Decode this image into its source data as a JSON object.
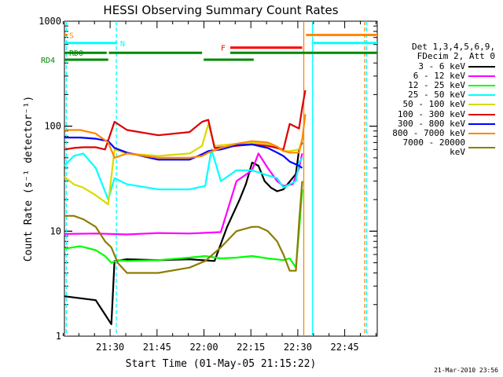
{
  "chart_data": {
    "type": "line",
    "title": "HESSI Observing Summary Count Rates",
    "xlabel": "Start Time (01-May-05 21:15:22)",
    "ylabel": "Count Rate (s⁻¹ detector⁻¹)",
    "yscale": "log",
    "ylim": [
      1,
      1000
    ],
    "xlim_minutes": [
      0,
      100
    ],
    "x_tick_labels": [
      "21:30",
      "21:45",
      "22:00",
      "22:15",
      "22:30",
      "22:45"
    ],
    "x_tick_minutes": [
      14.6,
      29.6,
      44.6,
      59.6,
      74.6,
      89.6
    ],
    "y_tick_labels": [
      "1",
      "10",
      "100",
      "1000"
    ],
    "y_tick_values": [
      1,
      10,
      100,
      1000
    ],
    "legend_header": [
      "Det 1,3,4,5,6,9,",
      "FDecim 2, Att 0"
    ],
    "series": [
      {
        "name": "3 - 6 keV",
        "color": "#000000",
        "x": [
          0,
          10,
          15,
          16,
          20,
          30,
          40,
          48,
          52,
          56,
          58,
          60,
          62,
          64,
          66,
          68,
          70,
          74,
          75,
          76
        ],
        "y": [
          2.4,
          2.2,
          1.3,
          5.2,
          5.4,
          5.3,
          5.4,
          5.2,
          11,
          20,
          28,
          45,
          42,
          30,
          26,
          24,
          25,
          35,
          60,
          70
        ]
      },
      {
        "name": "6 - 12 keV",
        "color": "#ff00ff",
        "x": [
          0,
          10,
          20,
          30,
          40,
          50,
          55,
          60,
          62,
          65,
          68,
          70,
          73,
          75,
          76
        ],
        "y": [
          9.4,
          9.5,
          9.3,
          9.6,
          9.5,
          9.8,
          30,
          38,
          55,
          40,
          30,
          27,
          28,
          40,
          55
        ]
      },
      {
        "name": "12 - 25 keV",
        "color": "#00ff00",
        "x": [
          0,
          5,
          10,
          13,
          15,
          17,
          20,
          30,
          40,
          45,
          50,
          55,
          60,
          65,
          70,
          72,
          74,
          75,
          76
        ],
        "y": [
          6.8,
          7.2,
          6.6,
          5.8,
          5.0,
          5.3,
          5.2,
          5.3,
          5.6,
          5.8,
          5.5,
          5.6,
          5.8,
          5.5,
          5.3,
          5.5,
          4.5,
          10,
          25
        ]
      },
      {
        "name": "25 - 50 keV",
        "color": "#00ffff",
        "x": [
          0,
          3,
          6,
          10,
          14,
          16,
          20,
          30,
          40,
          45,
          47,
          50,
          55,
          60,
          65,
          68,
          70,
          72,
          74,
          75,
          76
        ],
        "y": [
          42,
          52,
          55,
          40,
          20,
          32,
          28,
          25,
          25,
          27,
          60,
          30,
          38,
          38,
          34,
          32,
          26,
          28,
          30,
          45,
          50
        ]
      },
      {
        "name": "50 - 100 keV",
        "color": "#d9d900",
        "x": [
          0,
          3,
          6,
          10,
          14,
          16,
          20,
          30,
          40,
          44,
          46,
          48,
          55,
          60,
          65,
          68,
          70,
          72,
          75,
          76
        ],
        "y": [
          33,
          28,
          26,
          22,
          18,
          60,
          55,
          52,
          55,
          65,
          105,
          65,
          68,
          70,
          68,
          62,
          58,
          58,
          60,
          75
        ]
      },
      {
        "name": "100 - 300 keV",
        "color": "#dd0000",
        "x": [
          0,
          3,
          6,
          10,
          13,
          16,
          20,
          30,
          40,
          44,
          46,
          48,
          55,
          60,
          65,
          68,
          70,
          72,
          75,
          76,
          77
        ],
        "y": [
          60,
          62,
          63,
          63,
          60,
          110,
          92,
          82,
          88,
          110,
          115,
          62,
          65,
          67,
          65,
          62,
          60,
          105,
          95,
          150,
          220
        ]
      },
      {
        "name": "300 - 800 keV",
        "color": "#0000ff",
        "x": [
          0,
          5,
          10,
          14,
          16,
          20,
          30,
          40,
          44,
          46,
          50,
          55,
          60,
          65,
          68,
          70,
          72,
          75,
          76
        ],
        "y": [
          78,
          78,
          76,
          72,
          62,
          56,
          48,
          48,
          54,
          58,
          60,
          66,
          67,
          62,
          56,
          52,
          46,
          42,
          40
        ]
      },
      {
        "name": "800 - 7000 keV",
        "color": "#ff8800",
        "x": [
          0,
          5,
          10,
          14,
          16,
          20,
          30,
          40,
          44,
          46,
          50,
          55,
          60,
          65,
          68,
          70,
          72,
          75,
          76,
          77
        ],
        "y": [
          92,
          92,
          85,
          70,
          50,
          55,
          50,
          50,
          52,
          56,
          62,
          68,
          72,
          70,
          64,
          58,
          56,
          56,
          75,
          130
        ]
      },
      {
        "name": "7000 - 20000 keV",
        "color": "#8b7d00",
        "x": [
          0,
          3,
          6,
          10,
          13,
          15,
          17,
          20,
          30,
          40,
          45,
          50,
          55,
          60,
          62,
          65,
          68,
          70,
          72,
          74,
          75,
          76
        ],
        "y": [
          14,
          14,
          13,
          11,
          8,
          7,
          5,
          4,
          4,
          4.5,
          5.2,
          7,
          10,
          11,
          11,
          10,
          8,
          6,
          4.2,
          4.2,
          12,
          30
        ]
      }
    ],
    "flags": [
      {
        "label": "S",
        "color": "#ff8800",
        "y": 740,
        "segments": [
          [
            0,
            1.0
          ],
          [
            77.2,
            100
          ]
        ]
      },
      {
        "label": "N",
        "color": "#00ffff",
        "y": 620,
        "segments": [
          [
            0,
            16.8
          ],
          [
            79.5,
            100
          ]
        ]
      },
      {
        "label": "F",
        "color": "#ff0000",
        "y": 560,
        "segments": [
          [
            53,
            76
          ]
        ]
      },
      {
        "label": "RD0",
        "color": "#008800",
        "y": 500,
        "segments": [
          [
            0,
            13.5
          ],
          [
            14.2,
            44
          ],
          [
            53,
            100
          ]
        ]
      },
      {
        "label": "RD4",
        "color": "#008800",
        "y": 430,
        "segments": [
          [
            0,
            14
          ],
          [
            44.5,
            60.5
          ]
        ]
      }
    ],
    "vlines": [
      {
        "x": 0.6,
        "color": "#00ffff",
        "style": "dashed"
      },
      {
        "x": 16.6,
        "color": "#00ffff",
        "style": "dashed"
      },
      {
        "x": 76.5,
        "color": "#ff8800",
        "style": "solid"
      },
      {
        "x": 79.3,
        "color": "#00ffff",
        "style": "solid"
      },
      {
        "x": 96,
        "color": "#ff8800",
        "style": "dashed"
      },
      {
        "x": 96.6,
        "color": "#00ffff",
        "style": "dashed"
      }
    ]
  },
  "footer": {
    "date": "21-Mar-2010 23:56"
  }
}
